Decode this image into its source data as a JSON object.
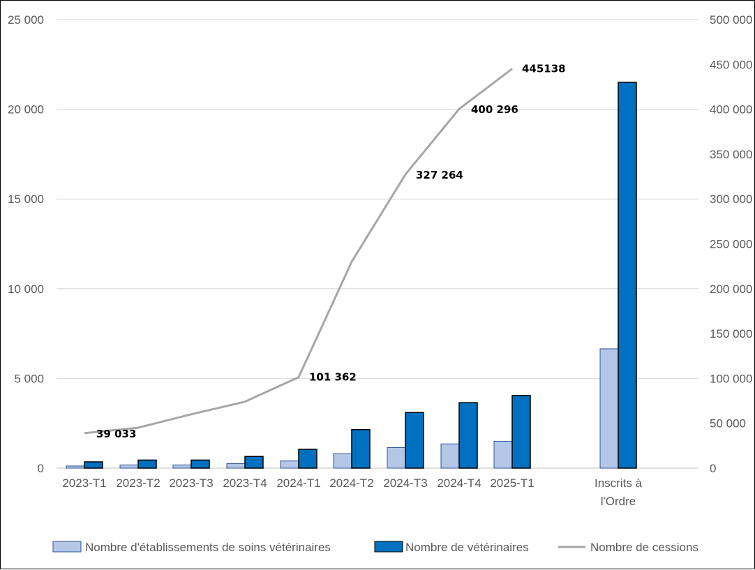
{
  "chart_data": {
    "type": "bar",
    "categories": [
      [
        "2023-T1"
      ],
      [
        "2023-T2"
      ],
      [
        "2023-T3"
      ],
      [
        "2023-T4"
      ],
      [
        "2024-T1"
      ],
      [
        "2024-T2"
      ],
      [
        "2024-T3"
      ],
      [
        "2024-T4"
      ],
      [
        "2025-T1"
      ],
      [
        "Inscrits à",
        "l'Ordre"
      ]
    ],
    "left_axis": {
      "min": 0,
      "max": 25000,
      "ticks": [
        "0",
        "5 000",
        "10 000",
        "15 000",
        "20 000",
        "25 000"
      ]
    },
    "right_axis": {
      "min": 0,
      "max": 500000,
      "ticks": [
        "0",
        "50 000",
        "100 000",
        "150 000",
        "200 000",
        "250 000",
        "300 000",
        "350 000",
        "400 000",
        "450 000",
        "500 000"
      ]
    },
    "grid": true,
    "legend_position": "bottom",
    "series": [
      {
        "name": "Nombre d'établissements de soins vétérinaires",
        "kind": "bar",
        "axis": "left",
        "color": "#b4c7e7",
        "stroke": "#2f5597",
        "values": [
          120,
          180,
          180,
          250,
          400,
          800,
          1150,
          1350,
          1500,
          6650
        ]
      },
      {
        "name": "Nombre de vétérinaires",
        "kind": "bar",
        "axis": "left",
        "color": "#0070c0",
        "stroke": "#000000",
        "values": [
          350,
          450,
          450,
          650,
          1050,
          2150,
          3100,
          3650,
          4050,
          21500
        ]
      },
      {
        "name": "Nombre de cessions",
        "kind": "line",
        "axis": "right",
        "color": "#a6a6a6",
        "values": [
          39033,
          45000,
          60000,
          74000,
          101362,
          230000,
          327264,
          400296,
          445138,
          null
        ]
      }
    ],
    "data_labels": [
      {
        "index": 0,
        "text": "39 033"
      },
      {
        "index": 4,
        "text": "101 362"
      },
      {
        "index": 6,
        "text": "327 264"
      },
      {
        "index": 7,
        "text": "400 296"
      },
      {
        "index": 8,
        "text": "445138"
      }
    ]
  }
}
